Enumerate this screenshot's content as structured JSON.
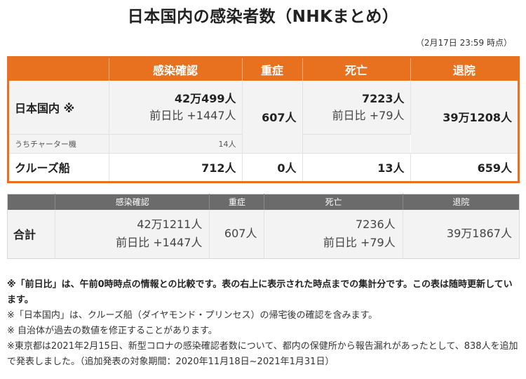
{
  "title": "日本国内の感染者数（NHKまとめ）",
  "timestamp": "（2月17日 23:59 時点）",
  "main_table": {
    "headers": [
      "感染確認",
      "重症",
      "死亡",
      "退院"
    ],
    "rows": {
      "japan": {
        "label": "日本国内 ※",
        "infected": "42万499人",
        "infected_delta": "前日比 +1447人",
        "severe": "607人",
        "deaths": "7223人",
        "deaths_delta": "前日比 +79人",
        "recovered": "39万1208人"
      },
      "charter": {
        "label": "うちチャーター機",
        "infected": "14人"
      },
      "cruise": {
        "label": "クルーズ船",
        "infected": "712人",
        "severe": "0人",
        "deaths": "13人",
        "recovered": "659人"
      }
    }
  },
  "total_table": {
    "headers": [
      "感染確認",
      "重症",
      "死亡",
      "退院"
    ],
    "label": "合計",
    "infected": "42万1211人",
    "infected_delta": "前日比 +1447人",
    "severe": "607人",
    "deaths": "7236人",
    "deaths_delta": "前日比 +79人",
    "recovered": "39万1867人"
  },
  "notes": {
    "n1": "※「前日比」は、午前0時時点の情報との比較です。表の右上に表示された時点までの集計分です。この表は随時更新しています。",
    "n2": "※「日本国内」は、クルーズ船（ダイヤモンド・プリンセス）の帰宅後の確認を含みます。",
    "n3": "※ 自治体が過去の数値を修正することがあります。",
    "n4": "※東京都は2021年2月15日、新型コロナの感染確認者数について、都内の保健所から報告漏れがあったとして、838人を追加で発表しました。（追加発表の対象期間：2020年11月18日~2021年1月31日）"
  },
  "colors": {
    "accent": "#e8711f",
    "total_header": "#6b6b6b",
    "row_bg": "#f3f3f3"
  }
}
